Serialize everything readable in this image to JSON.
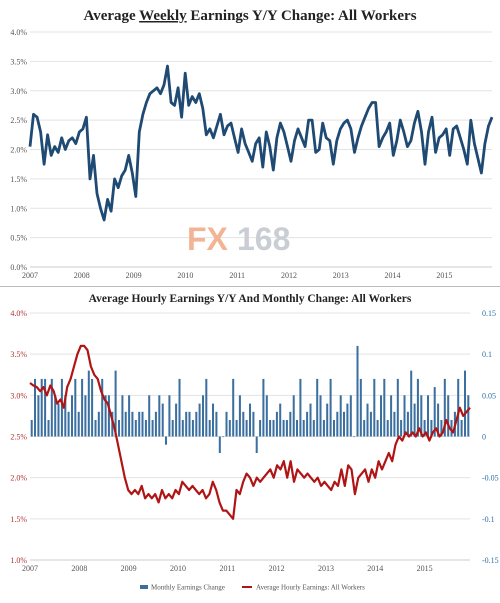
{
  "chart_data": [
    {
      "type": "line",
      "title_parts": [
        "Average ",
        "Weekly",
        " Earnings Y/Y Change: All Workers"
      ],
      "ylim": [
        0,
        4
      ],
      "y_ticks": [
        "0.0%",
        "0.5%",
        "1.0%",
        "1.5%",
        "2.0%",
        "2.5%",
        "3.0%",
        "3.5%",
        "4.0%"
      ],
      "x_ticks": [
        "2007",
        "2008",
        "2009",
        "2010",
        "2011",
        "2012",
        "2013",
        "2014",
        "2015"
      ],
      "xlim": [
        2007.0,
        2015.92
      ],
      "grid": "horizontal",
      "color": "#1f4a73",
      "watermark": {
        "fx": "FX",
        "num": "168"
      },
      "series": [
        {
          "values": [
            2.05,
            2.6,
            2.55,
            2.3,
            1.75,
            2.25,
            1.9,
            2.05,
            1.95,
            2.2,
            2.0,
            2.15,
            2.2,
            2.1,
            2.3,
            2.35,
            2.55,
            1.5,
            1.9,
            1.25,
            1.0,
            0.8,
            1.15,
            0.95,
            1.5,
            1.35,
            1.55,
            1.65,
            1.9,
            1.6,
            1.2,
            2.3,
            2.6,
            2.8,
            2.95,
            3.0,
            3.05,
            2.95,
            3.1,
            3.42,
            2.8,
            2.75,
            3.05,
            2.55,
            3.3,
            2.75,
            2.9,
            2.8,
            2.95,
            2.7,
            2.25,
            2.35,
            2.2,
            2.4,
            2.6,
            2.25,
            2.4,
            2.45,
            2.2,
            1.95,
            2.35,
            2.1,
            1.95,
            1.8,
            2.1,
            2.2,
            1.7,
            2.3,
            2.05,
            1.65,
            2.2,
            2.45,
            2.3,
            2.05,
            1.8,
            2.15,
            2.35,
            2.2,
            2.05,
            2.5,
            2.5,
            1.95,
            2.0,
            2.45,
            2.2,
            2.15,
            1.75,
            2.15,
            2.35,
            2.45,
            2.5,
            2.35,
            1.95,
            2.2,
            2.4,
            2.55,
            2.7,
            2.8,
            2.8,
            2.05,
            2.2,
            2.3,
            2.45,
            1.9,
            2.15,
            2.5,
            2.3,
            2.05,
            2.15,
            2.45,
            2.65,
            2.3,
            1.75,
            2.3,
            2.55,
            1.95,
            2.2,
            2.25,
            2.35,
            1.9,
            2.35,
            2.4,
            2.2,
            2.0,
            1.75,
            2.5,
            2.1,
            1.85,
            1.6,
            2.1,
            2.4,
            2.55
          ]
        }
      ]
    },
    {
      "type": "bar+line",
      "title": "Average Hourly Earnings Y/Y And Monthly Change: All Workers",
      "left_axis": {
        "ylim": [
          1.0,
          4.0
        ],
        "ticks": [
          "1.0%",
          "1.5%",
          "2.0%",
          "2.5%",
          "3.0%",
          "3.5%",
          "4.0%"
        ]
      },
      "right_axis": {
        "ylim": [
          -0.15,
          0.15
        ],
        "ticks": [
          "-0.15",
          "-0.1",
          "-0.05",
          "0",
          "0.05",
          "0.1",
          "0.15"
        ]
      },
      "x_ticks": [
        "2007",
        "2008",
        "2009",
        "2010",
        "2011",
        "2012",
        "2013",
        "2014",
        "2015"
      ],
      "xlim": [
        2007.0,
        2015.92
      ],
      "colors": {
        "bars": "#3a6fa0",
        "line": "#b01515"
      },
      "series": [
        {
          "name": "Monthly Earnings Change",
          "type": "bar",
          "axis": "right",
          "values": [
            0.02,
            0.07,
            0.05,
            0.07,
            0.07,
            0.02,
            0.07,
            0.05,
            0.04,
            0.07,
            0.05,
            0.03,
            0.05,
            0.07,
            0.03,
            0.07,
            0.05,
            0.08,
            0.07,
            0.02,
            0.03,
            0.07,
            0.05,
            0.05,
            0.03,
            0.08,
            0.02,
            0.05,
            0.03,
            0.05,
            0.03,
            0.02,
            0.03,
            0.03,
            0.02,
            0.05,
            0.02,
            0.03,
            0.05,
            0.04,
            -0.01,
            0.05,
            0.02,
            0.04,
            0.07,
            0.02,
            0.03,
            0.03,
            0.02,
            0.03,
            0.04,
            0.05,
            0.07,
            0.02,
            0.04,
            0.03,
            -0.02,
            0.0,
            0.03,
            0.02,
            0.07,
            0.02,
            0.05,
            0.03,
            0.02,
            0.04,
            0.03,
            -0.02,
            0.02,
            0.07,
            0.05,
            0.02,
            0.02,
            0.03,
            0.04,
            0.02,
            0.02,
            0.03,
            0.05,
            0.02,
            0.07,
            0.02,
            0.03,
            0.04,
            0.02,
            0.07,
            0.05,
            0.02,
            0.04,
            0.07,
            0.02,
            0.03,
            0.05,
            0.03,
            0.04,
            0.05,
            0.0,
            0.11,
            0.07,
            0.02,
            0.04,
            0.03,
            0.07,
            0.02,
            0.05,
            0.07,
            0.02,
            0.05,
            0.03,
            0.07,
            0.02,
            0.05,
            0.03,
            0.08,
            0.04,
            0.07,
            0.05,
            0.02,
            0.05,
            0.02,
            0.06,
            0.04,
            0.02,
            0.07,
            0.05,
            0.02,
            0.03,
            0.07,
            0.02,
            0.08,
            0.05
          ]
        },
        {
          "name": "Average Hourly Earnings: All Workers",
          "type": "line",
          "axis": "left",
          "values": [
            3.15,
            3.12,
            3.1,
            3.05,
            3.1,
            3.0,
            3.12,
            3.05,
            2.9,
            2.95,
            2.85,
            3.1,
            3.2,
            3.35,
            3.5,
            3.6,
            3.6,
            3.55,
            3.35,
            3.25,
            3.2,
            3.05,
            2.95,
            2.9,
            2.75,
            2.6,
            2.4,
            2.2,
            2.0,
            1.85,
            1.8,
            1.85,
            1.8,
            1.9,
            1.75,
            1.8,
            1.75,
            1.8,
            1.7,
            1.85,
            1.75,
            1.8,
            1.75,
            1.85,
            1.8,
            1.95,
            1.9,
            1.85,
            1.9,
            1.85,
            1.8,
            1.85,
            1.75,
            1.8,
            1.95,
            1.85,
            1.7,
            1.6,
            1.6,
            1.55,
            1.5,
            1.85,
            1.8,
            1.95,
            2.05,
            2.0,
            1.9,
            2.0,
            1.95,
            2.0,
            2.05,
            2.1,
            2.0,
            2.15,
            2.1,
            2.2,
            2.0,
            2.2,
            1.95,
            2.1,
            2.05,
            2.0,
            2.05,
            2.0,
            1.95,
            2.0,
            1.9,
            1.95,
            1.9,
            1.85,
            1.95,
            1.9,
            2.1,
            1.9,
            2.15,
            2.1,
            1.8,
            2.0,
            2.05,
            2.1,
            1.95,
            2.1,
            2.0,
            2.2,
            2.1,
            2.2,
            2.3,
            2.2,
            2.4,
            2.5,
            2.45,
            2.55,
            2.5,
            2.55,
            2.5,
            2.6,
            2.5,
            2.55,
            2.45,
            2.55,
            2.6,
            2.5,
            2.55,
            2.7,
            2.6,
            2.55,
            2.7,
            2.85,
            2.75,
            2.8,
            2.85
          ]
        }
      ]
    }
  ]
}
